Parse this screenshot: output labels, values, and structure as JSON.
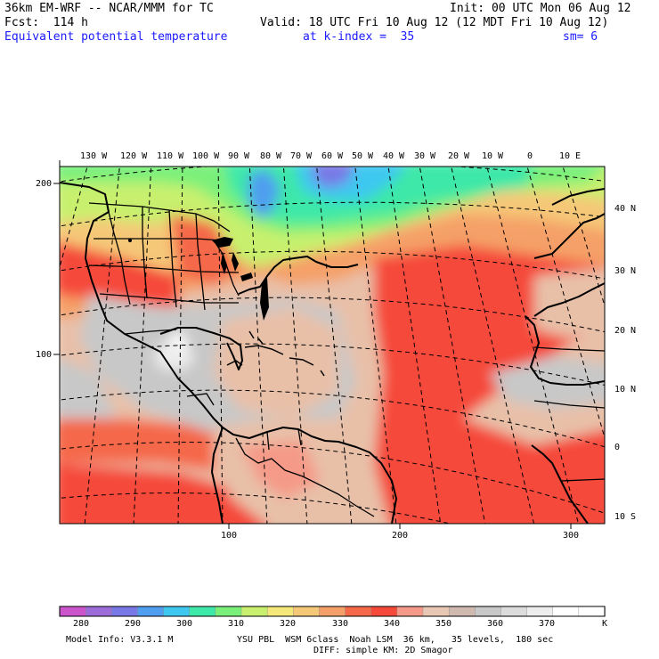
{
  "header": {
    "model_title": "36km EM-WRF -- NCAR/MMM for TC",
    "init": "Init: 00 UTC Mon 06 Aug 12",
    "forecast": "Fcst:  114 h",
    "valid": "Valid: 18 UTC Fri 10 Aug 12 (12 MDT Fri 10 Aug 12)",
    "field": "Equivalent potential temperature",
    "level": "at k-index =  35",
    "smoothing": "sm= 6"
  },
  "map": {
    "top_lon_labels": [
      "130 W",
      "120 W",
      "110 W",
      "100 W",
      "90 W",
      "80 W",
      "70 W",
      "60 W",
      "50 W",
      "40 W",
      "30 W",
      "20 W",
      "10 W",
      "0",
      "10 E"
    ],
    "right_lat_labels": [
      "40 N",
      "30 N",
      "20 N",
      "10 N",
      "0",
      "10 S"
    ],
    "left_grid_labels": [
      "200",
      "100"
    ],
    "bottom_grid_labels": [
      "100",
      "200",
      "300"
    ]
  },
  "colorbar": {
    "colors": [
      "#cc55cc",
      "#9c6cd8",
      "#7878e6",
      "#4f9ef0",
      "#3ec8f0",
      "#3ee8a8",
      "#7af07a",
      "#c8f06e",
      "#f5e87a",
      "#f5c878",
      "#f5a068",
      "#f56848",
      "#f54a3a",
      "#f59a88",
      "#e8c8b4",
      "#d0bab0",
      "#c8c8c8",
      "#dcdcdc",
      "#ededed",
      "#ffffff",
      "#ffffff"
    ],
    "labels": [
      "280",
      "290",
      "300",
      "310",
      "320",
      "330",
      "340",
      "350",
      "360",
      "370"
    ],
    "unit": "K"
  },
  "footer": {
    "model_info": "Model Info: V3.3.1 M",
    "physics": "YSU PBL  WSM 6class  Noah LSM  36 km,   35 levels,  180 sec",
    "diffusion": "DIFF: simple KM: 2D Smagor"
  }
}
